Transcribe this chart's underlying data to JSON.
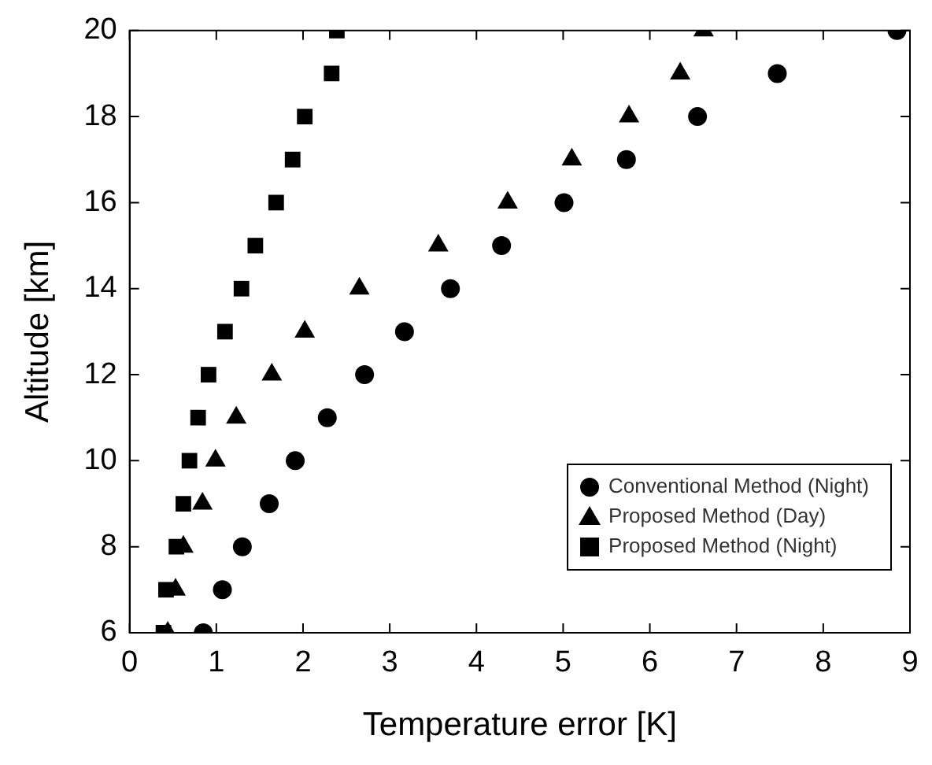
{
  "chart_data": {
    "type": "scatter",
    "xlabel": "Temperature error [K]",
    "ylabel": "Altitude [km]",
    "xlim": [
      0,
      9
    ],
    "ylim": [
      6,
      20
    ],
    "xticks": [
      0,
      1,
      2,
      3,
      4,
      5,
      6,
      7,
      8,
      9
    ],
    "yticks": [
      6,
      8,
      10,
      12,
      14,
      16,
      18,
      20
    ],
    "grid": false,
    "legend": "bottom right",
    "series": [
      {
        "name": "Conventional Method (Night)",
        "color": "#000000",
        "marker": "circle",
        "x": [
          0.85,
          1.07,
          1.3,
          1.61,
          1.91,
          2.28,
          2.71,
          3.17,
          3.7,
          4.29,
          5.01,
          5.73,
          6.55,
          7.47,
          8.85
        ],
        "values": [
          6,
          7,
          8,
          9,
          10,
          11,
          12,
          13,
          14,
          15,
          16,
          17,
          18,
          19,
          20
        ]
      },
      {
        "name": "Proposed Method (Day)",
        "color": "#000000",
        "marker": "triangle",
        "x": [
          0.44,
          0.53,
          0.62,
          0.84,
          0.99,
          1.23,
          1.64,
          2.02,
          2.65,
          3.56,
          4.36,
          5.1,
          5.76,
          6.35,
          6.62
        ],
        "values": [
          6,
          7,
          8,
          9,
          10,
          11,
          12,
          13,
          14,
          15,
          16,
          17,
          18,
          19,
          20
        ]
      },
      {
        "name": "Proposed Method (Night)",
        "color": "#000000",
        "marker": "square",
        "x": [
          0.39,
          0.42,
          0.54,
          0.62,
          0.69,
          0.79,
          0.91,
          1.1,
          1.29,
          1.45,
          1.69,
          1.88,
          2.02,
          2.33,
          2.39
        ],
        "values": [
          6,
          7,
          8,
          9,
          10,
          11,
          12,
          13,
          14,
          15,
          16,
          17,
          18,
          19,
          20
        ]
      }
    ]
  }
}
